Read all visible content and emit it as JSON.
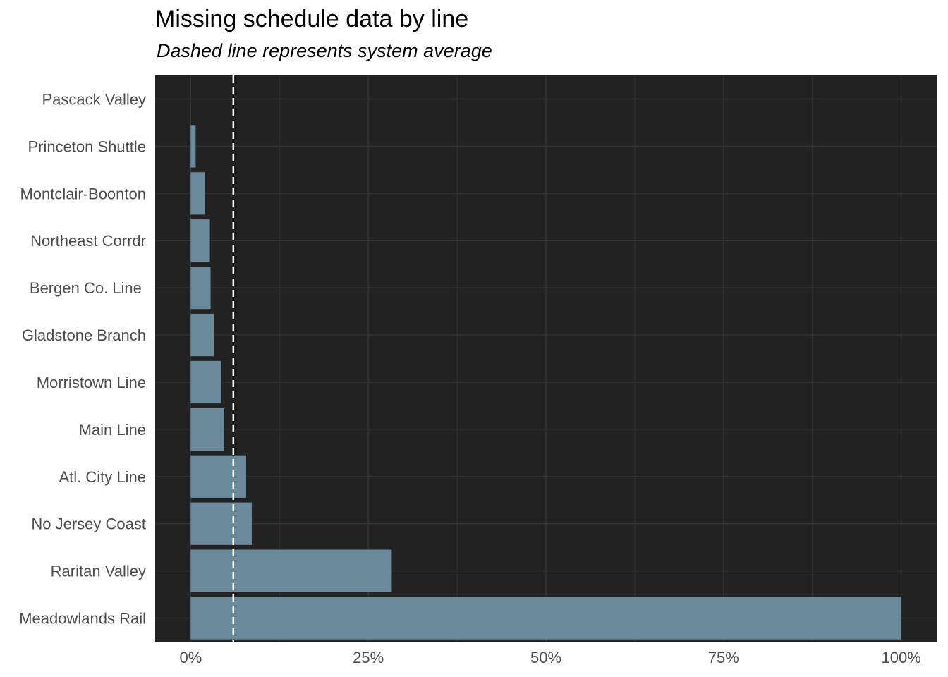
{
  "chart_data": {
    "type": "bar",
    "orientation": "horizontal",
    "title": "Missing schedule data by line",
    "subtitle": "Dashed line represents system average",
    "xlabel": "",
    "ylabel": "",
    "categories": [
      "Pascack Valley",
      "Princeton Shuttle",
      "Montclair-Boonton",
      "Northeast Corrdr",
      "Bergen Co. Line ",
      "Gladstone Branch",
      "Morristown Line",
      "Main Line",
      "Atl. City Line",
      "No Jersey Coast",
      "Raritan Valley",
      "Meadowlands Rail"
    ],
    "values": [
      0,
      0.007,
      0.02,
      0.027,
      0.028,
      0.033,
      0.043,
      0.047,
      0.078,
      0.086,
      0.283,
      1.0
    ],
    "reference_line": {
      "value": 0.06,
      "style": "dashed",
      "color": "#ffffff"
    },
    "xlim": [
      -0.05,
      1.05
    ],
    "xticks": [
      0,
      0.25,
      0.5,
      0.75,
      1.0
    ],
    "xtick_labels": [
      "0%",
      "25%",
      "50%",
      "75%",
      "100%"
    ],
    "grid": true,
    "colors": {
      "panel_background": "#222222",
      "bar": "#6b8a9c",
      "grid": "#333333",
      "reference_line": "#ffffff"
    }
  }
}
